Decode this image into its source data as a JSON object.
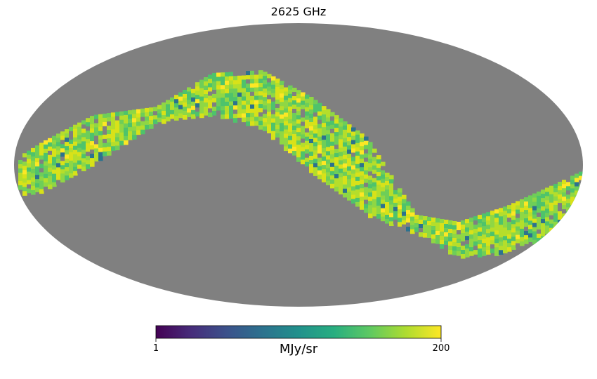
{
  "chart_data": {
    "type": "heatmap",
    "projection": "mollweide",
    "title": "2625 GHz",
    "colormap": "viridis",
    "scale": "log",
    "missing_color": "#808080",
    "colorbar": {
      "min": 1,
      "max": 200,
      "min_label": "1",
      "max_label": "200",
      "unit": "MJy/sr"
    }
  }
}
